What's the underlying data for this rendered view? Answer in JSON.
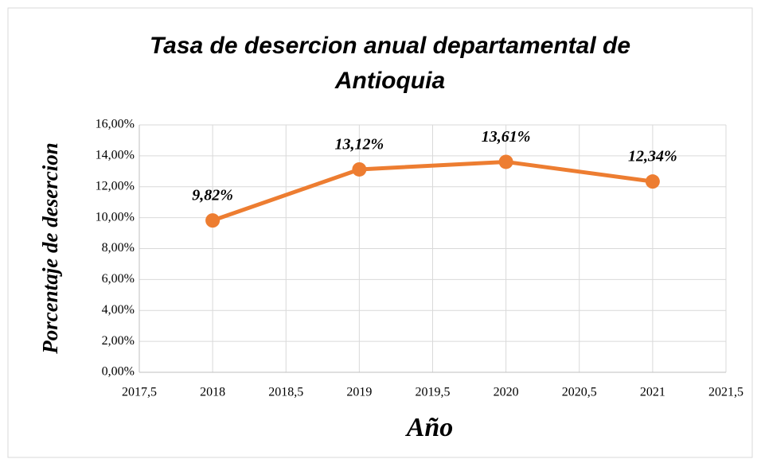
{
  "chart_data": {
    "type": "line",
    "title": "Tasa de desercion anual departamental de Antioquia",
    "xlabel": "Año",
    "ylabel": "Porcentaje de desercion",
    "x": [
      2018,
      2019,
      2020,
      2021
    ],
    "series": [
      {
        "name": "Tasa de desercion",
        "color": "#ed7d31",
        "values": [
          9.82,
          13.12,
          13.61,
          12.34
        ],
        "value_labels": [
          "9,82%",
          "13,12%",
          "13,61%",
          "12,34%"
        ]
      }
    ],
    "xlim": [
      2017.5,
      2021.5
    ],
    "xticks": [
      {
        "value": 2017.5,
        "label": "2017,5"
      },
      2018,
      {
        "value": 2018.5,
        "label": "2018,5"
      },
      2019,
      {
        "value": 2019.5,
        "label": "2019,5"
      },
      2020,
      {
        "value": 2020.5,
        "label": "2020,5"
      },
      2021,
      {
        "value": 2021.5,
        "label": "2021,5"
      }
    ],
    "ylim": [
      0,
      16
    ],
    "yticks": [
      {
        "value": 0,
        "label": "0,00%"
      },
      {
        "value": 2,
        "label": "2,00%"
      },
      {
        "value": 4,
        "label": "4,00%"
      },
      {
        "value": 6,
        "label": "6,00%"
      },
      {
        "value": 8,
        "label": "8,00%"
      },
      {
        "value": 10,
        "label": "10,00%"
      },
      {
        "value": 12,
        "label": "12,00%"
      },
      {
        "value": 14,
        "label": "14,00%"
      },
      {
        "value": 16,
        "label": "16,00%"
      }
    ],
    "grid": true
  }
}
